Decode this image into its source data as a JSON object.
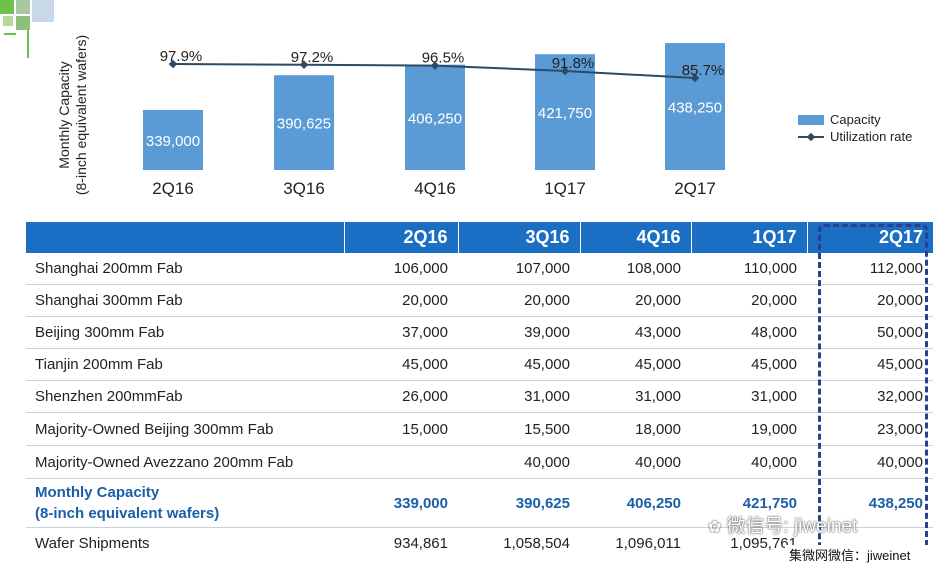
{
  "chart_data": {
    "type": "bar",
    "categories": [
      "2Q16",
      "3Q16",
      "4Q16",
      "1Q17",
      "2Q17"
    ],
    "series": [
      {
        "name": "Capacity",
        "type": "bar",
        "values": [
          339000,
          390625,
          406250,
          421750,
          438250
        ],
        "labels": [
          "339,000",
          "390,625",
          "406,250",
          "421,750",
          "438,250"
        ]
      },
      {
        "name": "Utilization rate",
        "type": "line",
        "values": [
          97.9,
          97.2,
          96.5,
          91.8,
          85.7
        ],
        "labels": [
          "97.9%",
          "97.2%",
          "96.5%",
          "91.8%",
          "85.7%"
        ]
      }
    ],
    "ylabel_lines": [
      "Monthly Capacity",
      "(8-inch equivalent wafers)"
    ],
    "legend_position": "right",
    "grid": false,
    "colors": {
      "bar": "#5b9bd5",
      "line": "#2b4a63"
    }
  },
  "table": {
    "headers": [
      "",
      "2Q16",
      "3Q16",
      "4Q16",
      "1Q17",
      "2Q17"
    ],
    "rows": [
      {
        "name": "Shanghai 200mm Fab",
        "values": [
          "106,000",
          "107,000",
          "108,000",
          "110,000",
          "112,000"
        ]
      },
      {
        "name": "Shanghai 300mm Fab",
        "values": [
          "20,000",
          "20,000",
          "20,000",
          "20,000",
          "20,000"
        ]
      },
      {
        "name": "Beijing 300mm Fab",
        "values": [
          "37,000",
          "39,000",
          "43,000",
          "48,000",
          "50,000"
        ]
      },
      {
        "name": "Tianjin 200mm Fab",
        "values": [
          "45,000",
          "45,000",
          "45,000",
          "45,000",
          "45,000"
        ]
      },
      {
        "name": "Shenzhen 200mmFab",
        "values": [
          "26,000",
          "31,000",
          "31,000",
          "31,000",
          "32,000"
        ]
      },
      {
        "name": "Majority-Owned  Beijing 300mm Fab",
        "values": [
          "15,000",
          "15,500",
          "18,000",
          "19,000",
          "23,000"
        ]
      },
      {
        "name": "Majority-Owned  Avezzano 200mm Fab",
        "values": [
          "",
          "40,000",
          "40,000",
          "40,000",
          "40,000"
        ]
      }
    ],
    "total": {
      "name_line1": "Monthly Capacity",
      "name_line2": "(8-inch equivalent wafers)",
      "values": [
        "339,000",
        "390,625",
        "406,250",
        "421,750",
        "438,250"
      ]
    },
    "shipments": {
      "name": "Wafer Shipments",
      "values": [
        "934,861",
        "1,058,504",
        "1,096,011",
        "1,095,761",
        ""
      ]
    }
  },
  "watermarks": {
    "wechat_account": "微信号: jiweinet",
    "source": "集微网微信：jiweinet"
  },
  "colors": {
    "header_bg": "#1a6fc4",
    "highlight_text": "#1a5fa8",
    "dash_box": "#2a3f8f"
  }
}
